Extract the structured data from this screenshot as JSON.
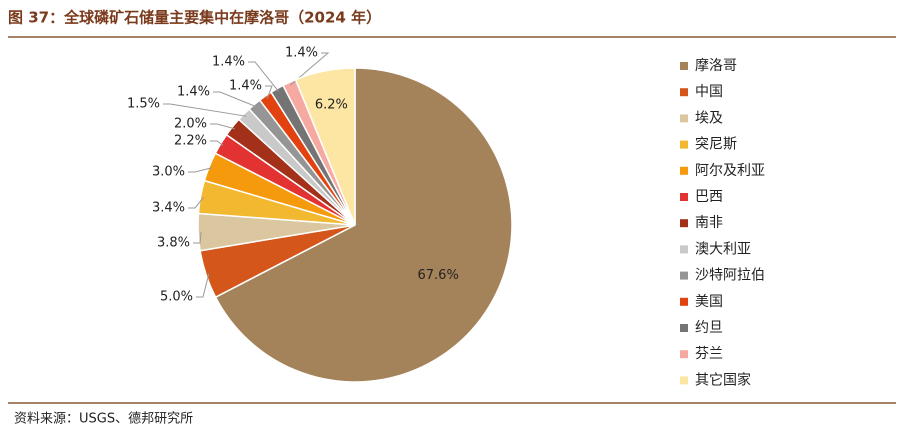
{
  "title": "图 37：全球磷矿石储量主要集中在摩洛哥（2024 年）",
  "source": "资料来源：USGS、德邦研究所",
  "chart_data": {
    "type": "pie",
    "categories": [
      "摩洛哥",
      "中国",
      "埃及",
      "突尼斯",
      "阿尔及利亚",
      "巴西",
      "南非",
      "澳大利亚",
      "沙特阿拉伯",
      "美国",
      "约旦",
      "芬兰",
      "其它国家"
    ],
    "values": [
      67.6,
      5.0,
      3.8,
      3.4,
      3.0,
      2.2,
      2.0,
      1.5,
      1.4,
      1.4,
      1.4,
      1.4,
      6.2
    ],
    "value_labels": [
      "67.6%",
      "5.0%",
      "3.8%",
      "3.4%",
      "3.0%",
      "2.2%",
      "2.0%",
      "1.5%",
      "1.4%",
      "1.4%",
      "1.4%",
      "1.4%",
      "6.2%"
    ],
    "colors": [
      "#a5835a",
      "#d4561a",
      "#dac7a0",
      "#f2b830",
      "#f59a0c",
      "#e23232",
      "#a3311a",
      "#c9c9c9",
      "#959595",
      "#e2420f",
      "#747474",
      "#f6a9a0",
      "#fde6a4"
    ],
    "legend": "right"
  }
}
